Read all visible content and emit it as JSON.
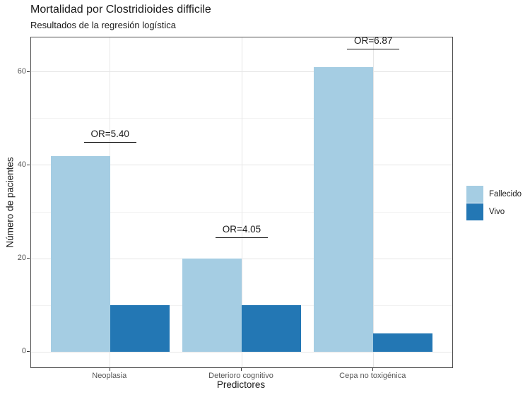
{
  "header": {
    "title": "Mortalidad por Clostridioides difficile",
    "subtitle": "Resultados de la regresión logística"
  },
  "chart_data": {
    "type": "bar",
    "title": "Mortalidad por Clostridioides difficile",
    "subtitle": "Resultados de la regresión logística",
    "xlabel": "Predictores",
    "ylabel": "Número de pacientes",
    "categories": [
      "Neoplasia",
      "Deterioro cognitivo",
      "Cepa no toxigénica"
    ],
    "series": [
      {
        "name": "Fallecido",
        "color": "#A5CDE3",
        "values": [
          42,
          20,
          61
        ]
      },
      {
        "name": "Vivo",
        "color": "#2377B4",
        "values": [
          10,
          10,
          4
        ]
      }
    ],
    "annotations": [
      {
        "label": "OR=5.40",
        "category_index": 0,
        "line_y": 45
      },
      {
        "label": "OR=4.05",
        "category_index": 1,
        "line_y": 24.5
      },
      {
        "label": "OR=6.87",
        "category_index": 2,
        "line_y": 65
      }
    ],
    "y_ticks": [
      0,
      20,
      40,
      60
    ],
    "y_minor_ticks": [
      10,
      30,
      50
    ],
    "ylim": [
      -3.3,
      67.4
    ],
    "grid": true,
    "legend_position": "right"
  },
  "colors": {
    "fallecido": "#A5CDE3",
    "vivo": "#2377B4",
    "panel_border": "#4d4d4d",
    "grid_major": "#E6E6E6",
    "grid_minor": "#F2F2F2",
    "tick_mark": "#333333",
    "axis_text": "#555555",
    "title_text": "#1a1a1a",
    "annotation_line": "#111111"
  }
}
